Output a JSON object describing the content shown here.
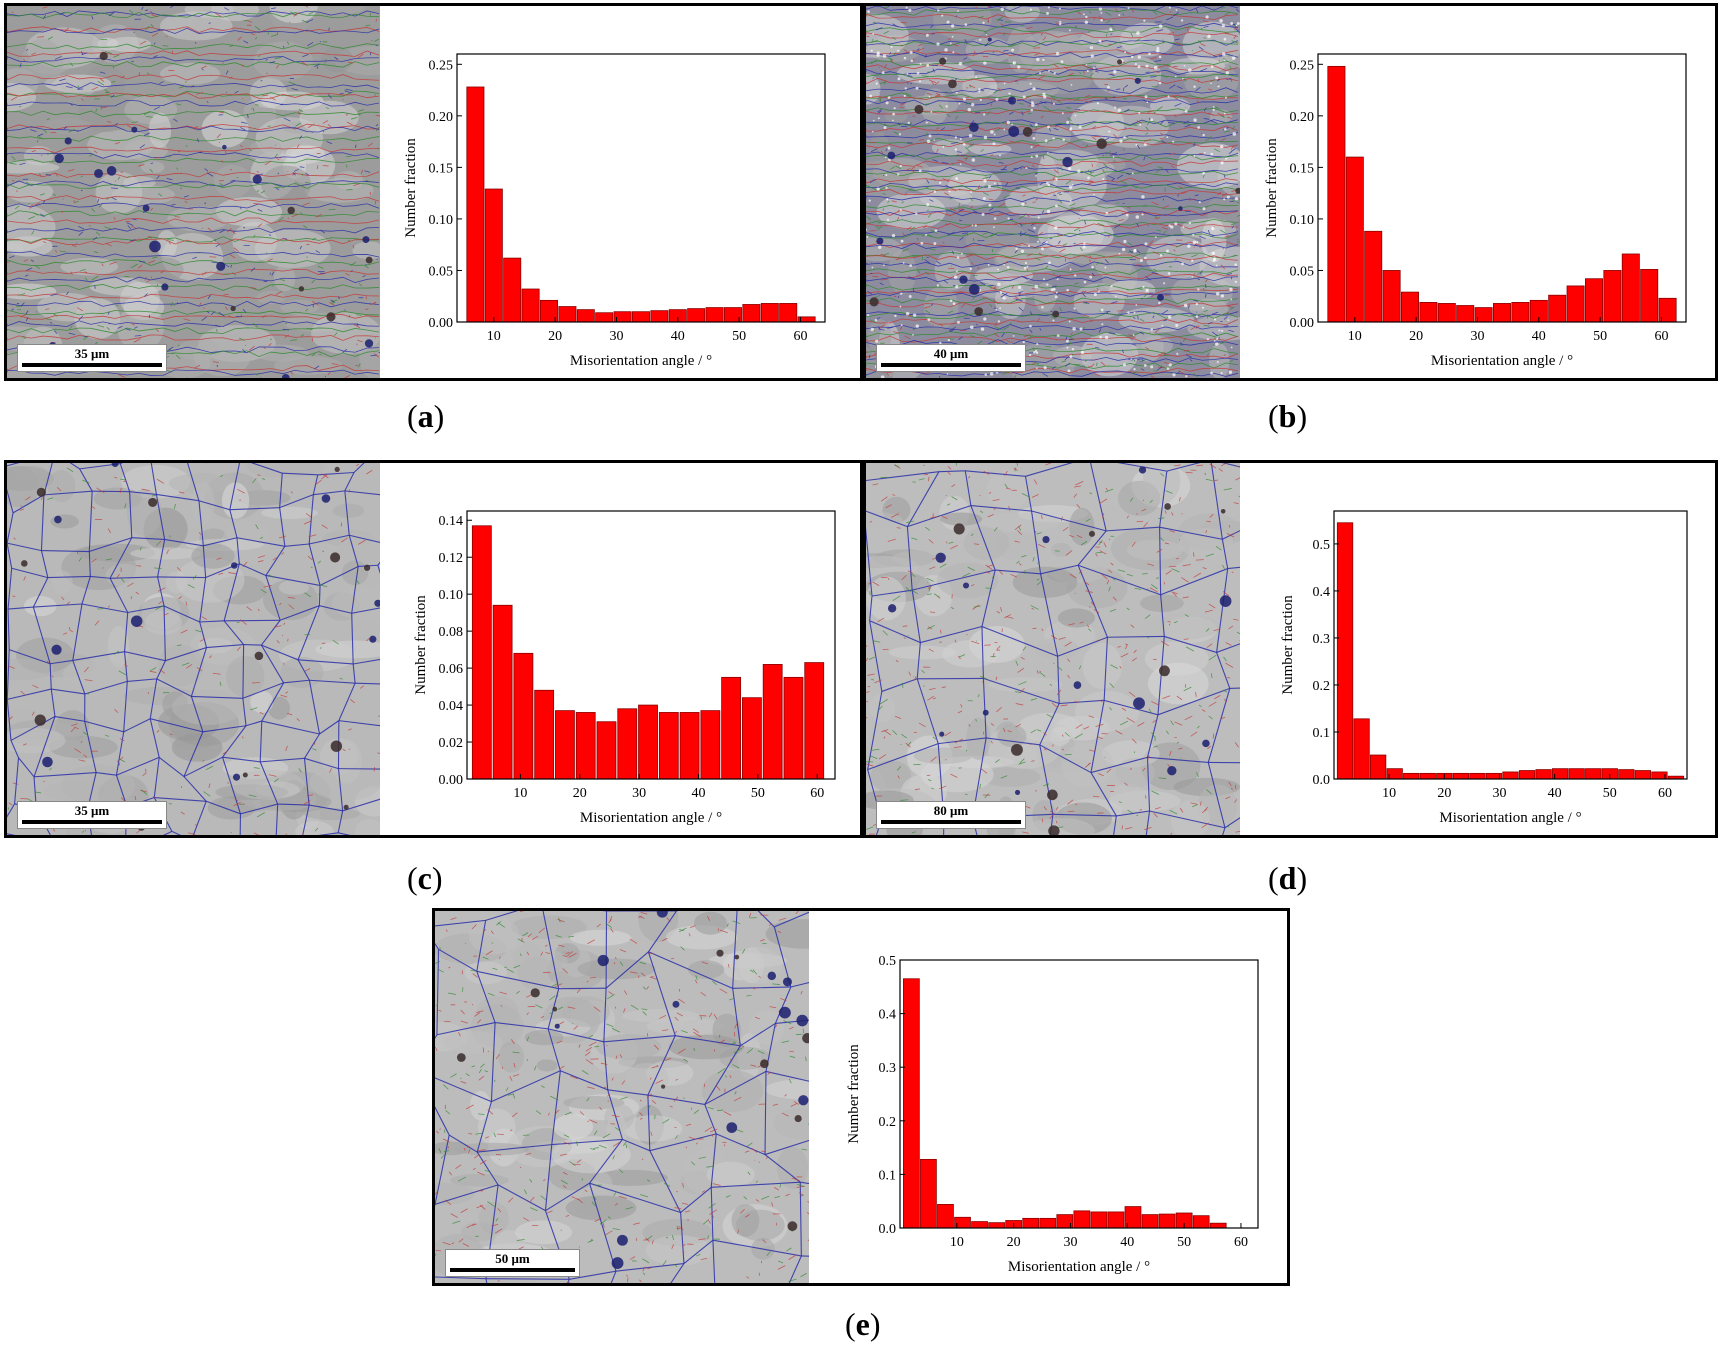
{
  "panels": [
    {
      "id": "a",
      "caption": "a",
      "scale_bar": "35 μm",
      "microstructure": {
        "style": "elongated-fine",
        "base": "#9c9c9c"
      },
      "chart_data": {
        "type": "bar",
        "xlabel": "Misorientation angle / °",
        "ylabel": "Number fraction",
        "xlim": [
          4,
          64
        ],
        "ylim": [
          0,
          0.26
        ],
        "xticks": [
          10,
          20,
          30,
          40,
          50,
          60
        ],
        "yticks": [
          0.0,
          0.05,
          0.1,
          0.15,
          0.2,
          0.25
        ],
        "ytick_labels": [
          "0.00",
          "0.05",
          "0.10",
          "0.15",
          "0.20",
          "0.25"
        ],
        "bin_width": 2.8,
        "bar_color": "#ff0000",
        "x": [
          7,
          10,
          13,
          16,
          19,
          22,
          25,
          28,
          31,
          34,
          37,
          40,
          43,
          46,
          49,
          52,
          55,
          58,
          61
        ],
        "values": [
          0.228,
          0.129,
          0.062,
          0.032,
          0.021,
          0.015,
          0.012,
          0.009,
          0.01,
          0.01,
          0.011,
          0.012,
          0.013,
          0.014,
          0.014,
          0.017,
          0.018,
          0.018,
          0.005
        ]
      }
    },
    {
      "id": "b",
      "caption": "b",
      "scale_bar": "40 μm",
      "microstructure": {
        "style": "elongated-very-fine",
        "base": "#8c8c9e"
      },
      "chart_data": {
        "type": "bar",
        "xlabel": "Misorientation angle / °",
        "ylabel": "Number fraction",
        "xlim": [
          4,
          64
        ],
        "ylim": [
          0,
          0.26
        ],
        "xticks": [
          10,
          20,
          30,
          40,
          50,
          60
        ],
        "yticks": [
          0.0,
          0.05,
          0.1,
          0.15,
          0.2,
          0.25
        ],
        "ytick_labels": [
          "0.00",
          "0.05",
          "0.10",
          "0.15",
          "0.20",
          "0.25"
        ],
        "bin_width": 2.8,
        "bar_color": "#ff0000",
        "x": [
          7,
          10,
          13,
          16,
          19,
          22,
          25,
          28,
          31,
          34,
          37,
          40,
          43,
          46,
          49,
          52,
          55,
          58,
          61
        ],
        "values": [
          0.248,
          0.16,
          0.088,
          0.05,
          0.029,
          0.019,
          0.018,
          0.016,
          0.014,
          0.018,
          0.019,
          0.021,
          0.026,
          0.035,
          0.042,
          0.05,
          0.066,
          0.051,
          0.023
        ]
      }
    },
    {
      "id": "c",
      "caption": "c",
      "scale_bar": "35 μm",
      "microstructure": {
        "style": "equiaxed-fine",
        "base": "#b9b9b9"
      },
      "chart_data": {
        "type": "bar",
        "xlabel": "Misorientation angle / °",
        "ylabel": "Number fraction",
        "xlim": [
          1,
          63
        ],
        "ylim": [
          0,
          0.145
        ],
        "xticks": [
          10,
          20,
          30,
          40,
          50,
          60
        ],
        "yticks": [
          0.0,
          0.02,
          0.04,
          0.06,
          0.08,
          0.1,
          0.12,
          0.14
        ],
        "ytick_labels": [
          "0.00",
          "0.02",
          "0.04",
          "0.06",
          "0.08",
          "0.10",
          "0.12",
          "0.14"
        ],
        "bin_width": 3.2,
        "bar_color": "#ff0000",
        "x": [
          3.5,
          7,
          10.5,
          14,
          17.5,
          21,
          24.5,
          28,
          31.5,
          35,
          38.5,
          42,
          45.5,
          49,
          52.5,
          56,
          59.5
        ],
        "values": [
          0.137,
          0.094,
          0.068,
          0.048,
          0.037,
          0.036,
          0.031,
          0.038,
          0.04,
          0.036,
          0.036,
          0.037,
          0.055,
          0.044,
          0.062,
          0.055,
          0.063
        ]
      }
    },
    {
      "id": "d",
      "caption": "d",
      "scale_bar": "80 μm",
      "microstructure": {
        "style": "equiaxed-coarse",
        "base": "#bdbdbd"
      },
      "chart_data": {
        "type": "bar",
        "xlabel": "Misorientation angle / °",
        "ylabel": "Number fraction",
        "xlim": [
          0,
          64
        ],
        "ylim": [
          0,
          0.57
        ],
        "xticks": [
          10,
          20,
          30,
          40,
          50,
          60
        ],
        "yticks": [
          0.0,
          0.1,
          0.2,
          0.3,
          0.4,
          0.5
        ],
        "ytick_labels": [
          "0.0",
          "0.1",
          "0.2",
          "0.3",
          "0.4",
          "0.5"
        ],
        "bin_width": 2.8,
        "bar_color": "#ff0000",
        "x": [
          2,
          5,
          8,
          11,
          14,
          17,
          20,
          23,
          26,
          29,
          32,
          35,
          38,
          41,
          44,
          47,
          50,
          53,
          56,
          59,
          62
        ],
        "values": [
          0.545,
          0.128,
          0.051,
          0.022,
          0.012,
          0.012,
          0.012,
          0.012,
          0.012,
          0.012,
          0.015,
          0.018,
          0.02,
          0.022,
          0.022,
          0.022,
          0.022,
          0.02,
          0.018,
          0.015,
          0.006
        ]
      }
    },
    {
      "id": "e",
      "caption": "e",
      "scale_bar": "50 μm",
      "microstructure": {
        "style": "equiaxed-coarse",
        "base": "#bcbcbc"
      },
      "chart_data": {
        "type": "bar",
        "xlabel": "Misorientation angle / °",
        "ylabel": "Number fraction",
        "xlim": [
          0,
          63
        ],
        "ylim": [
          0,
          0.5
        ],
        "xticks": [
          10,
          20,
          30,
          40,
          50,
          60
        ],
        "yticks": [
          0.0,
          0.1,
          0.2,
          0.3,
          0.4,
          0.5
        ],
        "ytick_labels": [
          "0.0",
          "0.1",
          "0.2",
          "0.3",
          "0.4",
          "0.5"
        ],
        "bin_width": 2.8,
        "bar_color": "#ff0000",
        "x": [
          2,
          5,
          8,
          11,
          14,
          17,
          20,
          23,
          26,
          29,
          32,
          35,
          38,
          41,
          44,
          47,
          50,
          53,
          56,
          59
        ],
        "values": [
          0.465,
          0.128,
          0.044,
          0.02,
          0.012,
          0.01,
          0.014,
          0.018,
          0.018,
          0.025,
          0.032,
          0.03,
          0.03,
          0.04,
          0.025,
          0.026,
          0.028,
          0.023,
          0.009,
          0.0
        ]
      }
    }
  ]
}
